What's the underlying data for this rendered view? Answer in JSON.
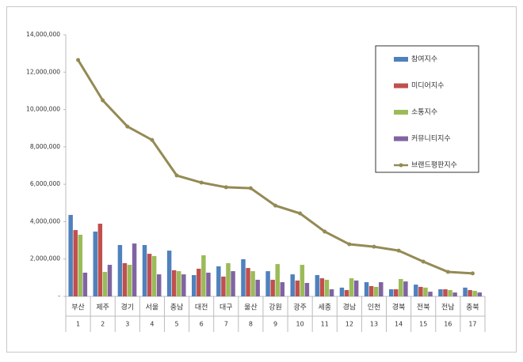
{
  "chart_data": {
    "type": "bar",
    "categories": [
      "부산",
      "제주",
      "경기",
      "서울",
      "충남",
      "대전",
      "대구",
      "울산",
      "강원",
      "광주",
      "세종",
      "경남",
      "인천",
      "경북",
      "전북",
      "전남",
      "충북"
    ],
    "category_ranks": [
      1,
      2,
      3,
      4,
      5,
      6,
      7,
      8,
      9,
      10,
      11,
      12,
      13,
      14,
      15,
      16,
      17
    ],
    "ylim": [
      0,
      14000000
    ],
    "yticks": [
      {
        "value": 0,
        "label": "-"
      },
      {
        "value": 2000000,
        "label": "2,000,000"
      },
      {
        "value": 4000000,
        "label": "4,000,000"
      },
      {
        "value": 6000000,
        "label": "6,000,000"
      },
      {
        "value": 8000000,
        "label": "8,000,000"
      },
      {
        "value": 10000000,
        "label": "10,000,000"
      },
      {
        "value": 12000000,
        "label": "12,000,000"
      },
      {
        "value": 14000000,
        "label": "14,000,000"
      }
    ],
    "legend": "top-right",
    "series": [
      {
        "name": "참여지수",
        "color": "#4f81bd",
        "type": "bar",
        "values": [
          4360000,
          3470000,
          2750000,
          2750000,
          2450000,
          1140000,
          1610000,
          1990000,
          1350000,
          1180000,
          1140000,
          470000,
          760000,
          380000,
          630000,
          380000,
          470000
        ]
      },
      {
        "name": "미디어지수",
        "color": "#c0504d",
        "type": "bar",
        "values": [
          3550000,
          3890000,
          1780000,
          2280000,
          1400000,
          1480000,
          1060000,
          1520000,
          890000,
          850000,
          970000,
          340000,
          550000,
          380000,
          510000,
          380000,
          340000
        ]
      },
      {
        "name": "소통지수",
        "color": "#9bbb59",
        "type": "bar",
        "values": [
          3300000,
          1310000,
          1690000,
          2160000,
          1350000,
          2200000,
          1780000,
          1350000,
          1730000,
          1690000,
          890000,
          970000,
          510000,
          930000,
          470000,
          340000,
          300000
        ]
      },
      {
        "name": "커뮤니티지수",
        "color": "#8064a2",
        "type": "bar",
        "values": [
          1270000,
          1690000,
          2830000,
          1180000,
          1180000,
          1270000,
          1350000,
          890000,
          760000,
          720000,
          380000,
          850000,
          760000,
          800000,
          250000,
          210000,
          210000
        ]
      },
      {
        "name": "브랜드평판지수",
        "color": "#948a54",
        "type": "line",
        "values": [
          12650000,
          10490000,
          9090000,
          8370000,
          6470000,
          6090000,
          5840000,
          5790000,
          4860000,
          4440000,
          3470000,
          2790000,
          2660000,
          2450000,
          1860000,
          1310000,
          1230000
        ]
      }
    ]
  }
}
